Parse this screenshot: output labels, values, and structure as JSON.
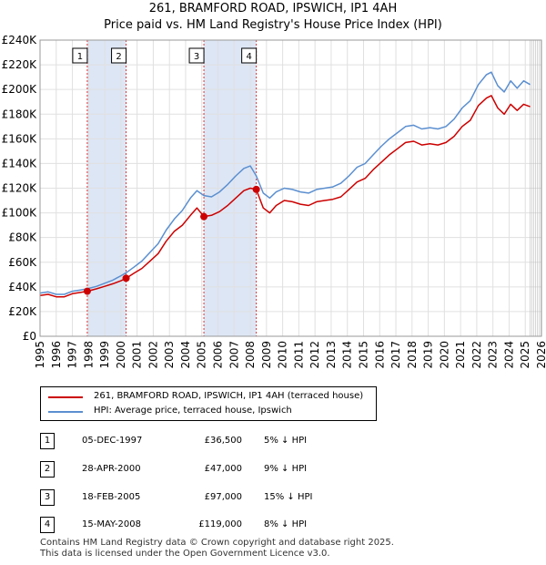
{
  "title_line1": "261, BRAMFORD ROAD, IPSWICH, IP1 4AH",
  "title_line2": "Price paid vs. HM Land Registry's House Price Index (HPI)",
  "colors": {
    "price_line": "#cc0000",
    "hpi_line": "#5b8fd0",
    "shade": "#dde6f5",
    "marker": "#cc0000"
  },
  "chart_data": {
    "type": "line",
    "ylim": [
      0,
      240000
    ],
    "xlim": [
      1995,
      2026
    ],
    "y_ticks": [
      0,
      20000,
      40000,
      60000,
      80000,
      100000,
      120000,
      140000,
      160000,
      180000,
      200000,
      220000,
      240000
    ],
    "y_tick_labels": [
      "£0",
      "£20K",
      "£40K",
      "£60K",
      "£80K",
      "£100K",
      "£120K",
      "£140K",
      "£160K",
      "£180K",
      "£200K",
      "£220K",
      "£240K"
    ],
    "x_tick_labels": [
      "1995",
      "1996",
      "1997",
      "1998",
      "1999",
      "2000",
      "2001",
      "2002",
      "2003",
      "2004",
      "2005",
      "2006",
      "2007",
      "2008",
      "2009",
      "2010",
      "2011",
      "2012",
      "2013",
      "2014",
      "2015",
      "2016",
      "2017",
      "2018",
      "2019",
      "2020",
      "2021",
      "2022",
      "2023",
      "2024",
      "2025",
      "2026"
    ],
    "shaded_ranges": [
      [
        1997.92,
        2000.32
      ],
      [
        2005.13,
        2008.37
      ]
    ],
    "future_from": 2025.3,
    "sales": [
      {
        "label": "1",
        "x": 1997.92,
        "y": 36500
      },
      {
        "label": "2",
        "x": 2000.32,
        "y": 47000
      },
      {
        "label": "3",
        "x": 2005.13,
        "y": 97000
      },
      {
        "label": "4",
        "x": 2008.37,
        "y": 119000
      }
    ],
    "series": [
      {
        "name": "261, BRAMFORD ROAD, IPSWICH, IP1 4AH (terraced house)",
        "x": [
          1995,
          1995.5,
          1996,
          1996.5,
          1997,
          1997.5,
          1997.92,
          1998.5,
          1999,
          1999.5,
          2000,
          2000.32,
          2000.8,
          2001.3,
          2001.8,
          2002.3,
          2002.8,
          2003.3,
          2003.8,
          2004.3,
          2004.7,
          2005.13,
          2005.6,
          2006.1,
          2006.6,
          2007.1,
          2007.6,
          2008.0,
          2008.37,
          2008.8,
          2009.2,
          2009.6,
          2010.1,
          2010.6,
          2011.1,
          2011.6,
          2012.1,
          2012.6,
          2013.1,
          2013.6,
          2014.1,
          2014.6,
          2015.1,
          2015.6,
          2016.1,
          2016.6,
          2017.1,
          2017.6,
          2018.1,
          2018.6,
          2019.1,
          2019.6,
          2020.1,
          2020.6,
          2021.1,
          2021.6,
          2022.1,
          2022.6,
          2022.9,
          2023.3,
          2023.7,
          2024.1,
          2024.5,
          2024.9,
          2025.3
        ],
        "values": [
          33000,
          34000,
          32000,
          32000,
          34500,
          35500,
          36500,
          38500,
          40500,
          42500,
          45000,
          47000,
          51000,
          55000,
          61000,
          67000,
          77000,
          85000,
          90000,
          98000,
          104000,
          97000,
          98000,
          101000,
          106000,
          112000,
          118000,
          120000,
          119000,
          104000,
          100000,
          106000,
          110000,
          109000,
          107000,
          106000,
          109000,
          110000,
          111000,
          113000,
          119000,
          125000,
          128000,
          135000,
          141000,
          147000,
          152000,
          157000,
          158000,
          155000,
          156000,
          155000,
          157000,
          162000,
          170000,
          175000,
          187000,
          193000,
          195000,
          185000,
          180000,
          188000,
          183000,
          188000,
          186000
        ]
      },
      {
        "name": "HPI: Average price, terraced house, Ipswich",
        "x": [
          1995,
          1995.5,
          1996,
          1996.5,
          1997,
          1997.5,
          1997.92,
          1998.5,
          1999,
          1999.5,
          2000,
          2000.32,
          2000.8,
          2001.3,
          2001.8,
          2002.3,
          2002.8,
          2003.3,
          2003.8,
          2004.3,
          2004.7,
          2005.13,
          2005.6,
          2006.1,
          2006.6,
          2007.1,
          2007.6,
          2008.0,
          2008.37,
          2008.8,
          2009.2,
          2009.6,
          2010.1,
          2010.6,
          2011.1,
          2011.6,
          2012.1,
          2012.6,
          2013.1,
          2013.6,
          2014.1,
          2014.6,
          2015.1,
          2015.6,
          2016.1,
          2016.6,
          2017.1,
          2017.6,
          2018.1,
          2018.6,
          2019.1,
          2019.6,
          2020.1,
          2020.6,
          2021.1,
          2021.6,
          2022.1,
          2022.6,
          2022.9,
          2023.3,
          2023.7,
          2024.1,
          2024.5,
          2024.9,
          2025.3
        ],
        "values": [
          35000,
          36000,
          34000,
          34000,
          36500,
          37500,
          38500,
          40500,
          43000,
          45500,
          49000,
          51500,
          56000,
          61000,
          68000,
          75000,
          86000,
          95000,
          102000,
          112000,
          118000,
          114000,
          113000,
          117000,
          123000,
          130000,
          136000,
          138000,
          130000,
          116000,
          112000,
          117000,
          120000,
          119000,
          117000,
          116000,
          119000,
          120000,
          121000,
          124000,
          130000,
          137000,
          140000,
          147000,
          154000,
          160000,
          165000,
          170000,
          171000,
          168000,
          169000,
          168000,
          170000,
          176000,
          185000,
          191000,
          204000,
          212000,
          214000,
          203000,
          198000,
          207000,
          201000,
          207000,
          204000
        ]
      }
    ]
  },
  "legend": {
    "price_label": "261, BRAMFORD ROAD, IPSWICH, IP1 4AH (terraced house)",
    "hpi_label": "HPI: Average price, terraced house, Ipswich"
  },
  "transactions": [
    {
      "num": "1",
      "date": "05-DEC-1997",
      "price": "£36,500",
      "hpi": "5% ↓ HPI"
    },
    {
      "num": "2",
      "date": "28-APR-2000",
      "price": "£47,000",
      "hpi": "9% ↓ HPI"
    },
    {
      "num": "3",
      "date": "18-FEB-2005",
      "price": "£97,000",
      "hpi": "15% ↓ HPI"
    },
    {
      "num": "4",
      "date": "15-MAY-2008",
      "price": "£119,000",
      "hpi": "8% ↓ HPI"
    }
  ],
  "footer_line1": "Contains HM Land Registry data © Crown copyright and database right 2025.",
  "footer_line2": "This data is licensed under the Open Government Licence v3.0."
}
